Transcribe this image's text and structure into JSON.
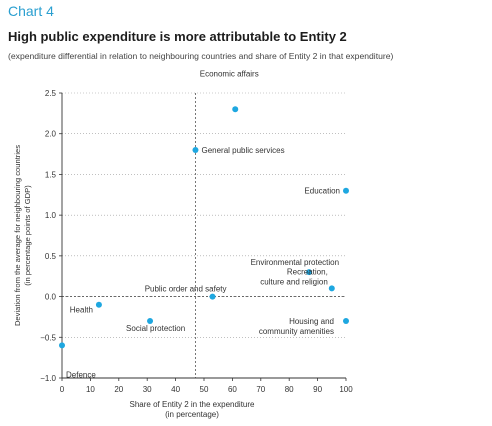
{
  "header": {
    "chart_label": "Chart 4",
    "title": "High public expenditure is more attributable to Entity 2",
    "subtitle": "(expenditure differential in relation to neighbouring countries and share of Entity 2 in that expenditure)"
  },
  "chart_data": {
    "type": "scatter",
    "xlabel": [
      "Share of Entity 2 in the expenditure",
      "(in percentage)"
    ],
    "ylabel": [
      "Deviation from the average for neighbouring countries",
      "(in percentage points of GDP)"
    ],
    "xlim": [
      0,
      100
    ],
    "ylim": [
      -1.0,
      2.5
    ],
    "xticks": [
      0,
      10,
      20,
      30,
      40,
      50,
      60,
      70,
      80,
      90,
      100
    ],
    "yticks": [
      -1.0,
      -0.5,
      0.0,
      0.5,
      1.0,
      1.5,
      2.0,
      2.5
    ],
    "ytick_labels": [
      "−1.0",
      "−0.5",
      "0.0",
      "0.5",
      "1.0",
      "1.5",
      "2.0",
      "2.5"
    ],
    "grid": "dotted horizontal",
    "reference_lines": {
      "x": 47,
      "y": 0.0
    },
    "point_color": "#1ea7e0",
    "points": [
      {
        "label": [
          "Economic affairs"
        ],
        "x": 61,
        "y": 2.3
      },
      {
        "label": [
          "General public services"
        ],
        "x": 47,
        "y": 1.8
      },
      {
        "label": [
          "Education"
        ],
        "x": 100,
        "y": 1.3
      },
      {
        "label": [
          "Environmental protection"
        ],
        "x": 87,
        "y": 0.3
      },
      {
        "label": [
          "Recreation,",
          "culture and religion"
        ],
        "x": 95,
        "y": 0.1
      },
      {
        "label": [
          "Public order and safety"
        ],
        "x": 53,
        "y": 0.0
      },
      {
        "label": [
          "Health"
        ],
        "x": 13,
        "y": -0.1
      },
      {
        "label": [
          "Social protection"
        ],
        "x": 31,
        "y": -0.3
      },
      {
        "label": [
          "Housing and",
          "community amenities"
        ],
        "x": 100,
        "y": -0.3
      },
      {
        "label": [
          "Defence"
        ],
        "x": 0,
        "y": -0.6
      }
    ]
  }
}
